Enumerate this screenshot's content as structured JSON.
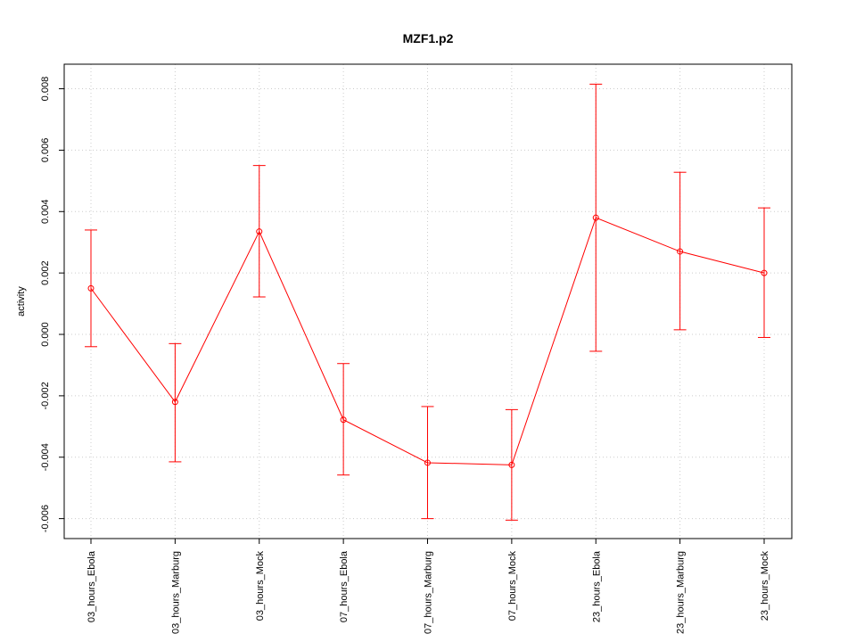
{
  "chart_data": {
    "type": "line",
    "title": "MZF1.p2",
    "xlabel": "",
    "ylabel": "activity",
    "categories": [
      "03_hours_Ebola",
      "03_hours_Marburg",
      "03_hours_Mock",
      "07_hours_Ebola",
      "07_hours_Marburg",
      "07_hours_Mock",
      "23_hours_Ebola",
      "23_hours_Marburg",
      "23_hours_Mock"
    ],
    "series": [
      {
        "values": [
          0.0015,
          -0.0022,
          0.00335,
          -0.00278,
          -0.00418,
          -0.00425,
          0.0038,
          0.0027,
          0.002
        ],
        "error_upper": [
          0.0034,
          -0.0003,
          0.0055,
          -0.00095,
          -0.00235,
          -0.00245,
          0.00815,
          0.00528,
          0.00412
        ],
        "error_lower": [
          -0.0004,
          -0.00415,
          0.00122,
          -0.00458,
          -0.006,
          -0.00605,
          -0.00055,
          0.00015,
          -0.0001
        ],
        "color": "#ff0000"
      }
    ],
    "y_ticks": [
      "-0.006",
      "-0.004",
      "-0.002",
      "0.000",
      "0.002",
      "0.004",
      "0.006",
      "0.008"
    ],
    "ylim": [
      -0.00665,
      0.0088
    ],
    "grid": true,
    "grid_color": "#cccccc",
    "axis_color": "#000000"
  }
}
